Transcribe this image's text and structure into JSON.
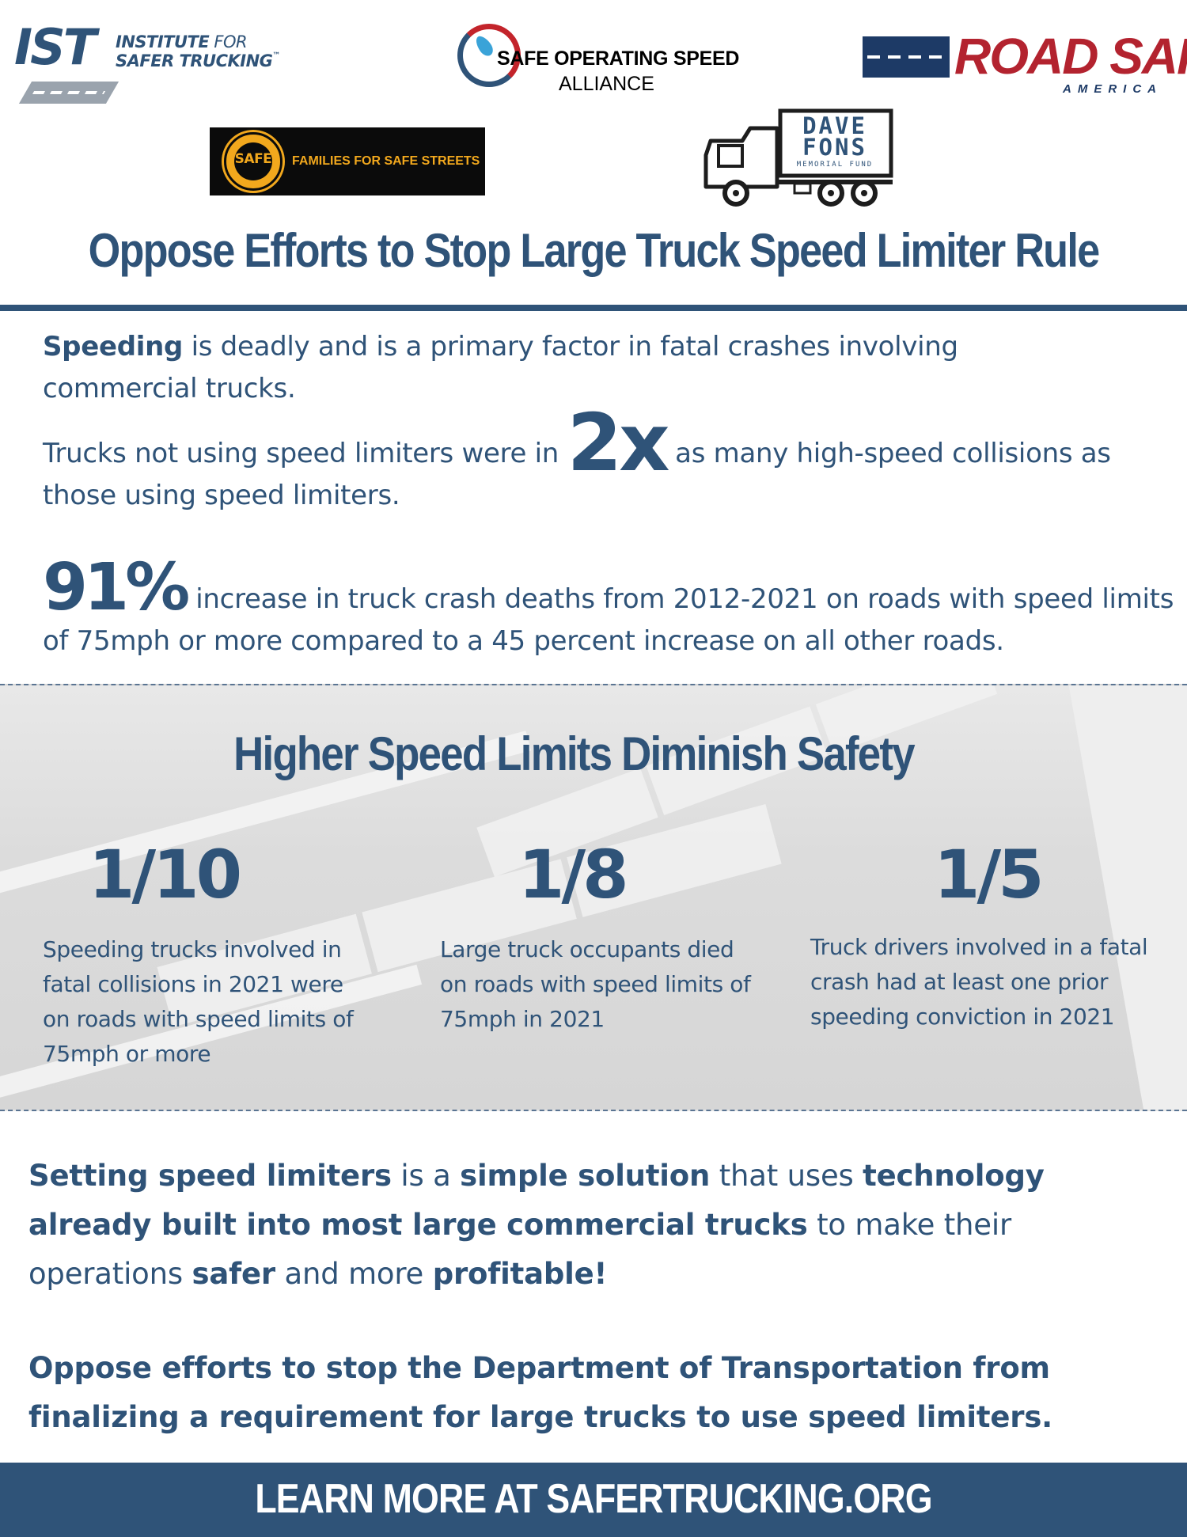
{
  "logos": {
    "ist": {
      "mark": "IST",
      "line1_bold": "INSTITUTE",
      "line1_light": " FOR",
      "line2": "SAFER TRUCKING",
      "trademark": "™"
    },
    "sosa": {
      "line1": "SAFE OPERATING SPEED",
      "line2": "ALLIANCE"
    },
    "road_safe": {
      "line1": "ROAD SAFE",
      "line2": "AMERICA"
    },
    "ffss": {
      "seal_word": "SAFE",
      "name": "FAMILIES FOR SAFE STREETS"
    },
    "dave_fons": {
      "line1": "DAVE",
      "line2": "FONS",
      "line3": "MEMORIAL FUND"
    }
  },
  "title": "Oppose Efforts to Stop Large Truck Speed Limiter Rule",
  "intro": {
    "p1_bold": "Speeding",
    "p1_rest": " is deadly and is a primary factor in fatal crashes involving commercial trucks.",
    "p2_before": "Trucks not using speed limiters were in ",
    "p2_big": "2x",
    "p2_after": " as many high-speed collisions as those using speed limiters.",
    "p3_big": "91%",
    "p3_rest": "increase in truck crash deaths from 2012-2021 on roads with speed limits of 75mph or more compared to a 45 percent increase on all other roads."
  },
  "section": {
    "title": "Higher Speed Limits Diminish Safety",
    "stats": [
      {
        "value": "1/10",
        "desc": "Speeding trucks involved in fatal collisions in 2021 were on roads with speed limits of 75mph or more"
      },
      {
        "value": "1/8",
        "desc": "Large truck occupants died on roads with speed limits of 75mph in 2021"
      },
      {
        "value": "1/5",
        "desc": "Truck drivers involved in a fatal crash had at least one prior speeding conviction in 2021"
      }
    ]
  },
  "closing": {
    "c1": [
      {
        "text": "Setting speed limiters",
        "bold": true
      },
      {
        "text": " is a ",
        "bold": false
      },
      {
        "text": "simple solution",
        "bold": true
      },
      {
        "text": " that uses ",
        "bold": false
      },
      {
        "text": "technology already built into most large commercial trucks",
        "bold": true
      },
      {
        "text": " to make their operations ",
        "bold": false
      },
      {
        "text": "safer",
        "bold": true
      },
      {
        "text": " and more ",
        "bold": false
      },
      {
        "text": "profitable!",
        "bold": true
      }
    ],
    "c2": "Oppose efforts to stop the Department of Transportation from finalizing a requirement for large trucks to use speed limiters."
  },
  "footer": "LEARN MORE AT SAFERTRUCKING.ORG",
  "colors": {
    "primary": "#2f5378",
    "red": "#b3232f",
    "gold": "#f2a81d"
  }
}
